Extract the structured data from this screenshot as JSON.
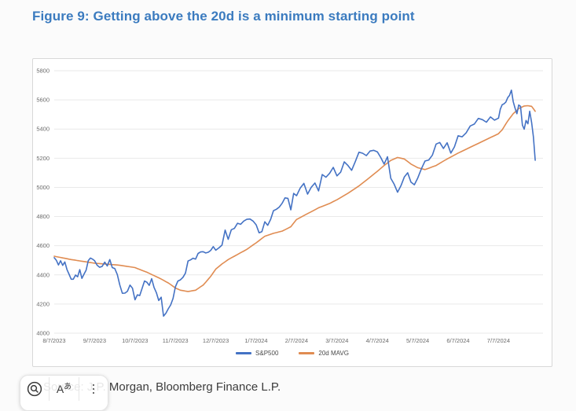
{
  "figure": {
    "title": "Figure 9: Getting above the 20d is a minimum starting point",
    "title_color": "#3b7bbf",
    "source_text": "Source: J.P. Morgan, Bloomberg Finance L.P."
  },
  "overlay_toolbar": {
    "buttons": [
      {
        "name": "visual-search"
      },
      {
        "name": "translate",
        "label_a": "A",
        "label_hiragana": "あ"
      },
      {
        "name": "more-options"
      }
    ]
  },
  "chart_data": {
    "type": "line",
    "title": "",
    "xlabel": "",
    "ylabel": "",
    "ylim": [
      4000,
      5800
    ],
    "y_ticks": [
      5800,
      5600,
      5400,
      5200,
      5000,
      4800,
      4600,
      4400,
      4200,
      4000
    ],
    "grid": true,
    "legend_position": "bottom",
    "x_labels": [
      "8/7/2023",
      "9/7/2023",
      "10/7/2023",
      "11/7/2023",
      "12/7/2023",
      "1/7/2024",
      "2/7/2024",
      "3/7/2024",
      "4/7/2024",
      "5/7/2024",
      "6/7/2024",
      "7/7/2024"
    ],
    "month_start_indices": [
      0,
      19,
      35,
      52,
      68,
      81,
      95,
      106,
      117,
      129,
      140,
      150
    ],
    "index_after_last_month": 172,
    "series": [
      {
        "name": "S&P500",
        "color": "#4472c4",
        "values": [
          4518,
          4500,
          4468,
          4497,
          4465,
          4489,
          4437,
          4404,
          4370,
          4370,
          4399,
          4387,
          4436,
          4376,
          4405,
          4433,
          4497,
          4515,
          4508,
          4497,
          4466,
          4452,
          4458,
          4487,
          4461,
          4505,
          4450,
          4443,
          4402,
          4330,
          4274,
          4275,
          4288,
          4330,
          4308,
          4229,
          4263,
          4258,
          4308,
          4358,
          4350,
          4328,
          4374,
          4314,
          4278,
          4224,
          4247,
          4117,
          4137,
          4167,
          4194,
          4238,
          4318,
          4358,
          4366,
          4383,
          4412,
          4495,
          4503,
          4514,
          4508,
          4547,
          4557,
          4559,
          4550,
          4555,
          4568,
          4594,
          4569,
          4585,
          4604,
          4707,
          4644,
          4710,
          4719,
          4754,
          4747,
          4769,
          4781,
          4783,
          4769,
          4743,
          4689,
          4697,
          4764,
          4740,
          4781,
          4840,
          4850,
          4865,
          4891,
          4928,
          4925,
          4846,
          4959,
          4943,
          4996,
          5027,
          4954,
          5001,
          5030,
          4976,
          5088,
          5070,
          5097,
          5137,
          5079,
          5104,
          5175,
          5150,
          5117,
          5178,
          5241,
          5234,
          5218,
          5249,
          5254,
          5244,
          5205,
          5160,
          5210,
          5062,
          5022,
          4967,
          5011,
          5071,
          5100,
          5036,
          5018,
          5064,
          5128,
          5181,
          5188,
          5222,
          5297,
          5308,
          5267,
          5306,
          5235,
          5278,
          5354,
          5347,
          5375,
          5421,
          5434,
          5473,
          5465,
          5447,
          5483,
          5461,
          5475,
          5537,
          5567,
          5573,
          5585,
          5615,
          5631,
          5667,
          5588,
          5544,
          5505,
          5565,
          5556,
          5427,
          5399,
          5459,
          5436,
          5522,
          5446,
          5346,
          5186
        ]
      },
      {
        "name": "20d MAVG",
        "color": "#e08c52",
        "derived_from": "S&P500",
        "window": 20,
        "anchors": [
          [
            0,
            4528
          ],
          [
            8,
            4505
          ],
          [
            19,
            4480
          ],
          [
            28,
            4468
          ],
          [
            35,
            4450
          ],
          [
            40,
            4418
          ],
          [
            45,
            4380
          ],
          [
            49,
            4345
          ],
          [
            52,
            4310
          ],
          [
            54,
            4295
          ],
          [
            57,
            4286
          ],
          [
            60,
            4295
          ],
          [
            63,
            4330
          ],
          [
            66,
            4390
          ],
          [
            68,
            4440
          ],
          [
            70,
            4475
          ],
          [
            72,
            4505
          ],
          [
            75,
            4540
          ],
          [
            78,
            4575
          ],
          [
            81,
            4620
          ],
          [
            84,
            4665
          ],
          [
            87,
            4685
          ],
          [
            90,
            4700
          ],
          [
            93,
            4730
          ],
          [
            95,
            4780
          ],
          [
            98,
            4820
          ],
          [
            101,
            4860
          ],
          [
            104,
            4890
          ],
          [
            106,
            4915
          ],
          [
            109,
            4960
          ],
          [
            112,
            5010
          ],
          [
            115,
            5070
          ],
          [
            117,
            5110
          ],
          [
            119,
            5150
          ],
          [
            121,
            5185
          ],
          [
            123,
            5205
          ],
          [
            125,
            5195
          ],
          [
            127,
            5160
          ],
          [
            129,
            5135
          ],
          [
            131,
            5122
          ],
          [
            134,
            5150
          ],
          [
            137,
            5195
          ],
          [
            140,
            5235
          ],
          [
            143,
            5275
          ],
          [
            146,
            5315
          ],
          [
            149,
            5355
          ],
          [
            152,
            5395
          ],
          [
            155,
            5455
          ],
          [
            158,
            5505
          ],
          [
            161,
            5540
          ],
          [
            164,
            5558
          ],
          [
            166,
            5560
          ],
          [
            168,
            5556
          ],
          [
            170,
            5522
          ]
        ]
      }
    ]
  }
}
